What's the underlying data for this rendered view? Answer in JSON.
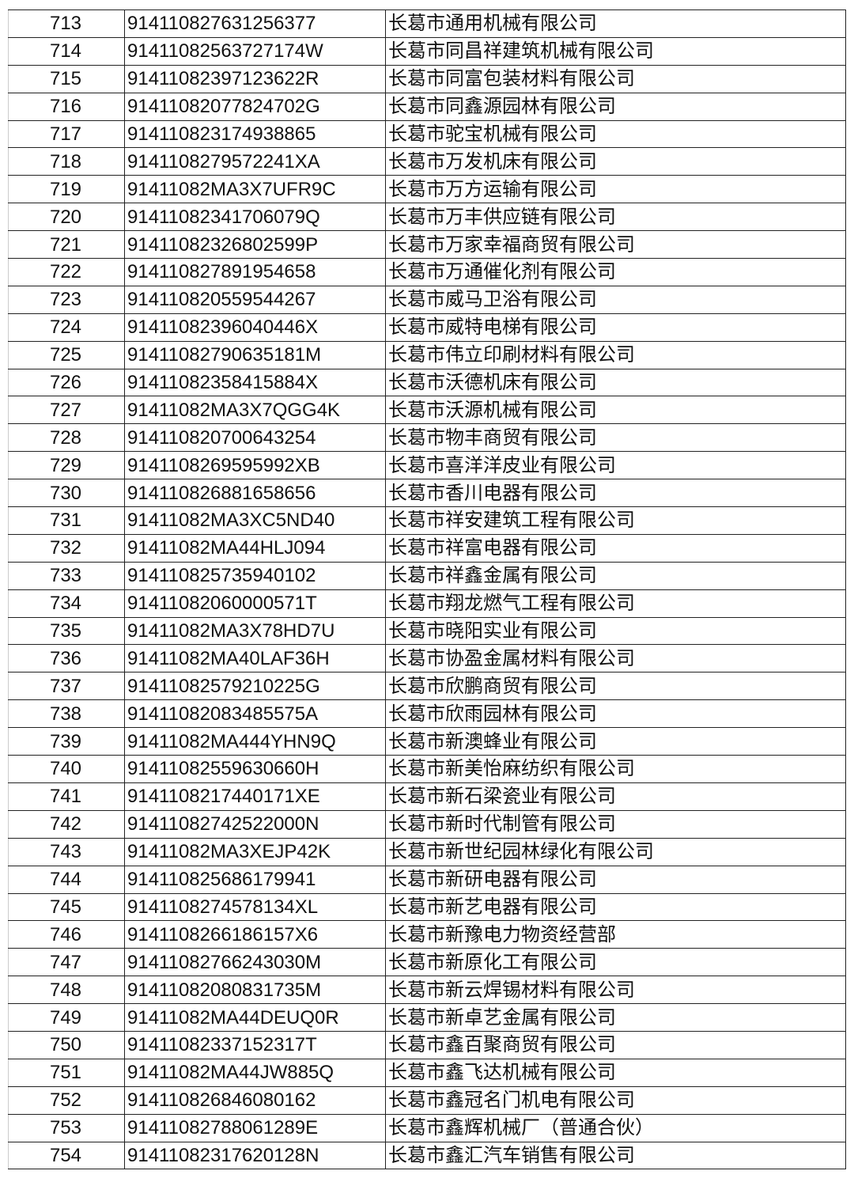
{
  "rows": [
    {
      "no": "713",
      "code": "91411082763125637​7",
      "name": "长葛市通用机械有限公司"
    },
    {
      "no": "714",
      "code": "91411082563727174W",
      "name": "长葛市同昌祥建筑机械有限公司"
    },
    {
      "no": "715",
      "code": "91411082397123622R",
      "name": "长葛市同富包装材料有限公司"
    },
    {
      "no": "716",
      "code": "91411082077824702G",
      "name": "长葛市同鑫源园林有限公司"
    },
    {
      "no": "717",
      "code": "914110823174938865",
      "name": "长葛市驼宝机械有限公司"
    },
    {
      "no": "718",
      "code": "9141108279572241XA",
      "name": "长葛市万发机床有限公司"
    },
    {
      "no": "719",
      "code": "91411082MA3X7UFR9C",
      "name": "长葛市万方运输有限公司"
    },
    {
      "no": "720",
      "code": "91411082341706079Q",
      "name": "长葛市万丰供应链有限公司"
    },
    {
      "no": "721",
      "code": "91411082326802599P",
      "name": "长葛市万家幸福商贸有限公司"
    },
    {
      "no": "722",
      "code": "914110827891954658",
      "name": "长葛市万通催化剂有限公司"
    },
    {
      "no": "723",
      "code": "914110820559544267",
      "name": "长葛市威马卫浴有限公司"
    },
    {
      "no": "724",
      "code": "91411082396040446X",
      "name": "长葛市威特电梯有限公司"
    },
    {
      "no": "725",
      "code": "91411082790635181M",
      "name": "长葛市伟立印刷材料有限公司"
    },
    {
      "no": "726",
      "code": "91411082358415884X",
      "name": "长葛市沃德机床有限公司"
    },
    {
      "no": "727",
      "code": "91411082MA3X7QGG4K",
      "name": "长葛市沃源机械有限公司"
    },
    {
      "no": "728",
      "code": "914110820700643254",
      "name": "长葛市物丰商贸有限公司"
    },
    {
      "no": "729",
      "code": "9141108269595992XB",
      "name": "长葛市喜洋洋皮业有限公司"
    },
    {
      "no": "730",
      "code": "914110826881658656",
      "name": "长葛市香川电器有限公司"
    },
    {
      "no": "731",
      "code": "91411082MA3XC5ND40",
      "name": "长葛市祥安建筑工程有限公司"
    },
    {
      "no": "732",
      "code": "91411082MA44HLJ094",
      "name": "长葛市祥富电器有限公司"
    },
    {
      "no": "733",
      "code": "914110825735940102",
      "name": "长葛市祥鑫金属有限公司"
    },
    {
      "no": "734",
      "code": "91411082060000571T",
      "name": "长葛市翔龙燃气工程有限公司"
    },
    {
      "no": "735",
      "code": "91411082MA3X78HD7U",
      "name": "长葛市晓阳实业有限公司"
    },
    {
      "no": "736",
      "code": "91411082MA40LAF36H",
      "name": "长葛市协盈金属材料有限公司"
    },
    {
      "no": "737",
      "code": "91411082579210225G",
      "name": "长葛市欣鹏商贸有限公司"
    },
    {
      "no": "738",
      "code": "91411082083485575A",
      "name": "长葛市欣雨园林有限公司"
    },
    {
      "no": "739",
      "code": "91411082MA444YHN9Q",
      "name": "长葛市新澳蜂业有限公司"
    },
    {
      "no": "740",
      "code": "91411082559630660H",
      "name": "长葛市新美怡麻纺织有限公司"
    },
    {
      "no": "741",
      "code": "9141108217440171XE",
      "name": "长葛市新石梁瓷业有限公司"
    },
    {
      "no": "742",
      "code": "91411082742522000N",
      "name": "长葛市新时代制管有限公司"
    },
    {
      "no": "743",
      "code": "91411082MA3XEJP42K",
      "name": "长葛市新世纪园林绿化有限公司"
    },
    {
      "no": "744",
      "code": "914110825686179941",
      "name": "长葛市新研电器有限公司"
    },
    {
      "no": "745",
      "code": "9141108274578134XL",
      "name": "长葛市新艺电器有限公司"
    },
    {
      "no": "746",
      "code": "9141108266186157X6",
      "name": "长葛市新豫电力物资经营部"
    },
    {
      "no": "747",
      "code": "91411082766243030M",
      "name": "长葛市新原化工有限公司"
    },
    {
      "no": "748",
      "code": "91411082080831735M",
      "name": "长葛市新云焊锡材料有限公司"
    },
    {
      "no": "749",
      "code": "91411082MA44DEUQ0R",
      "name": "长葛市新卓艺金属有限公司"
    },
    {
      "no": "750",
      "code": "91411082337152317T",
      "name": "长葛市鑫百聚商贸有限公司"
    },
    {
      "no": "751",
      "code": "91411082MA44JW885Q",
      "name": "长葛市鑫飞达机械有限公司"
    },
    {
      "no": "752",
      "code": "914110826846080162",
      "name": "长葛市鑫冠名门机电有限公司"
    },
    {
      "no": "753",
      "code": "91411082788061289E",
      "name": "长葛市鑫辉机械厂（普通合伙）"
    },
    {
      "no": "754",
      "code": "91411082317620128N",
      "name": "长葛市鑫汇汽车销售有限公司"
    }
  ]
}
